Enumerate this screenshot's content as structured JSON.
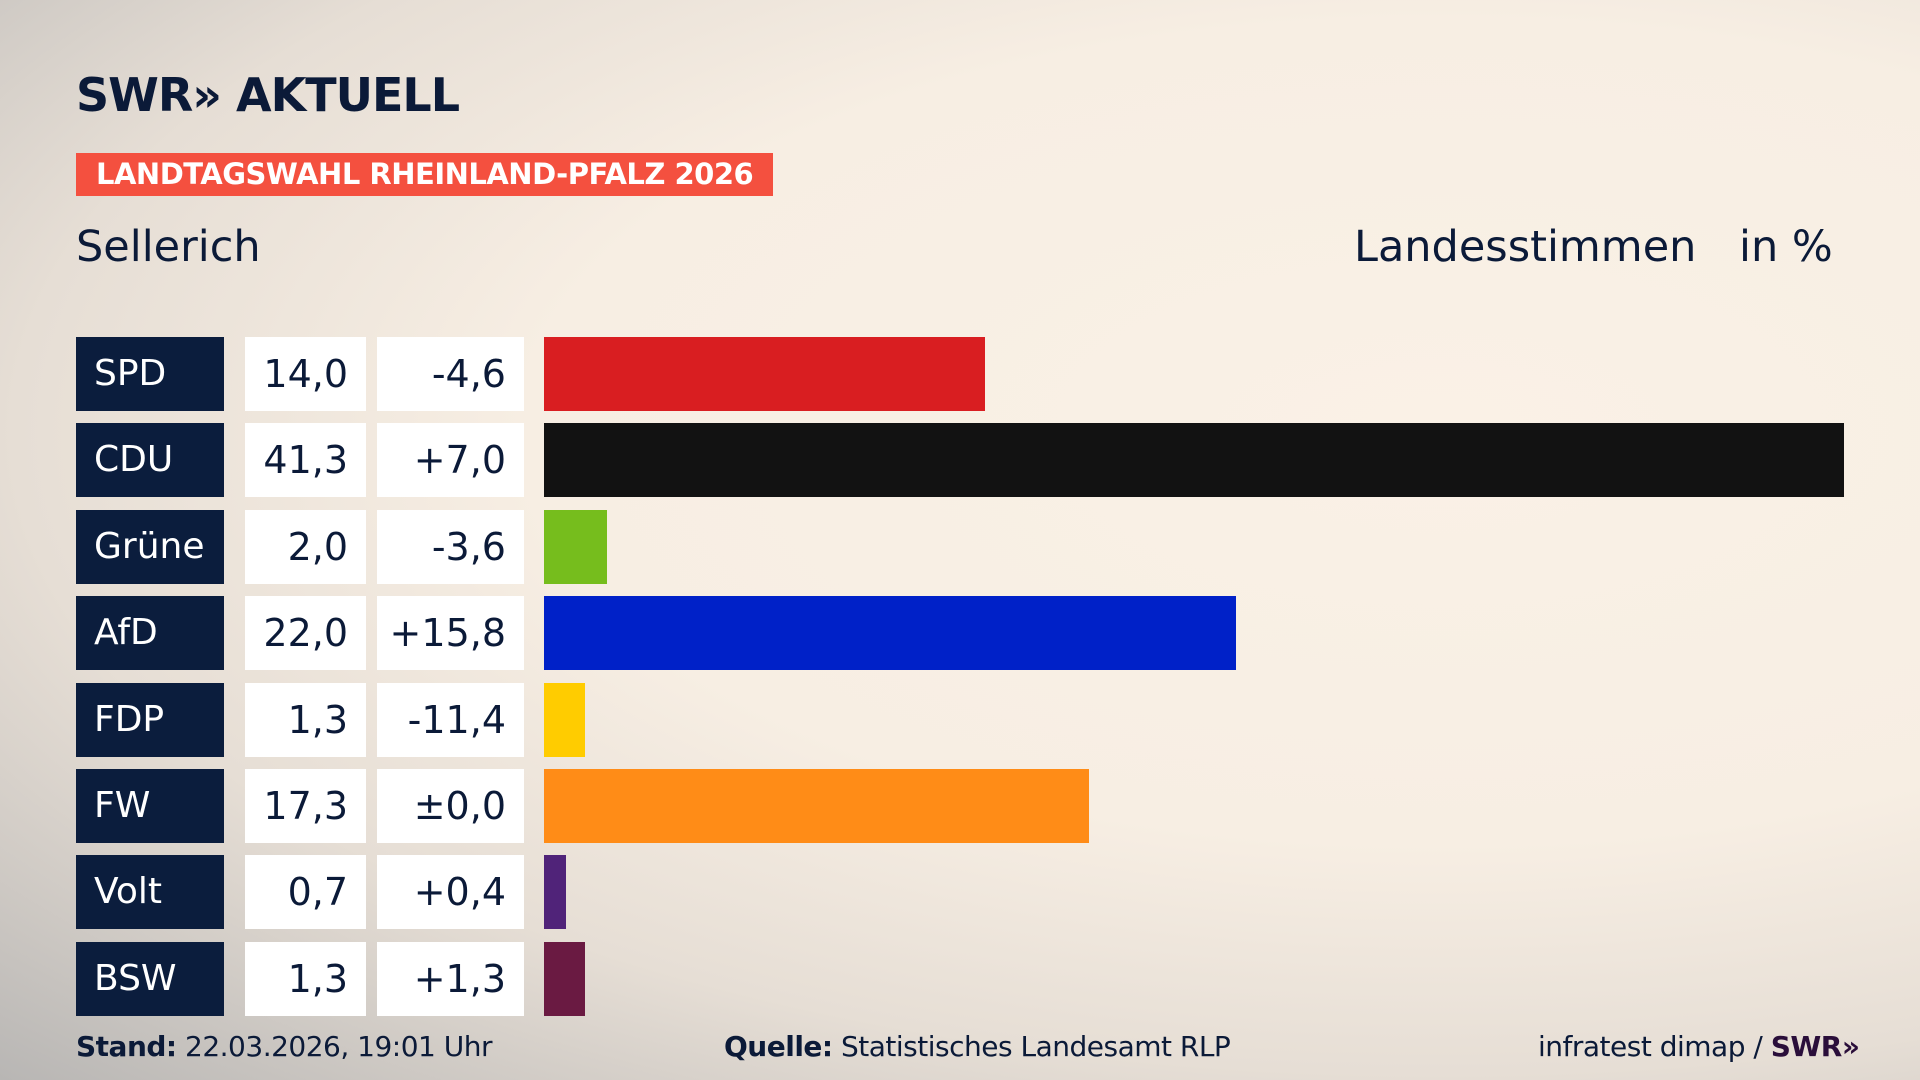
{
  "header": {
    "logo": "SWR» AKTUELL",
    "banner": "LANDTAGSWAHL RHEINLAND-PFALZ 2026",
    "place": "Sellerich",
    "vote_type": "Landesstimmen",
    "unit": "in %"
  },
  "chart_data": {
    "type": "bar",
    "orientation": "horizontal",
    "categories": [
      "SPD",
      "CDU",
      "Grüne",
      "AfD",
      "FDP",
      "FW",
      "Volt",
      "BSW"
    ],
    "values": [
      14.0,
      41.3,
      2.0,
      22.0,
      1.3,
      17.3,
      0.7,
      1.3
    ],
    "value_labels": [
      "14,0",
      "41,3",
      "2,0",
      "22,0",
      "1,3",
      "17,3",
      "0,7",
      "1,3"
    ],
    "diffs": [
      "-4,6",
      "+7,0",
      "-3,6",
      "+15,8",
      "-11,4",
      "±0,0",
      "+0,4",
      "+1,3"
    ],
    "colors": [
      "#d91e21",
      "#121212",
      "#76bd1d",
      "#0021c8",
      "#ffcc00",
      "#ff8c17",
      "#502379",
      "#6a1a42"
    ],
    "xlim": [
      0,
      41.3
    ],
    "grid": false
  },
  "footer": {
    "stand_label": "Stand:",
    "stand_value": "22.03.2026, 19:01 Uhr",
    "source_label": "Quelle:",
    "source_value": "Statistisches Landesamt RLP",
    "credit": "infratest dimap /",
    "credit_logo": "SWR»"
  }
}
